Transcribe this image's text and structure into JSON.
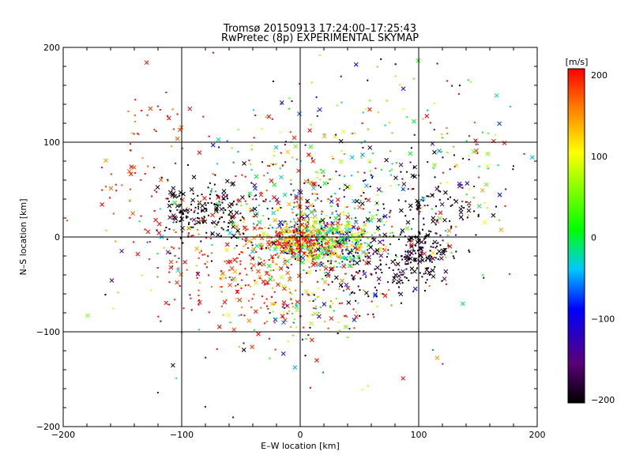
{
  "chart_data": {
    "type": "scatter",
    "title": "Tromsø 20150913 17:24:00–17:25:43",
    "subtitle": "RwPretec (8p) EXPERIMENTAL SKYMAP",
    "xlabel": "E–W location [km]",
    "ylabel": "N–S location [km]",
    "xlim": [
      -200,
      200
    ],
    "ylim": [
      -200,
      200
    ],
    "x_ticks": [
      "−200",
      "−100",
      "0",
      "100",
      "200"
    ],
    "y_ticks": [
      "−200",
      "−100",
      "0",
      "100",
      "200"
    ],
    "grid": true,
    "colorbar": {
      "label": "[m/s]",
      "range": [
        -200,
        200
      ],
      "ticks": [
        "200",
        "100",
        "0",
        "−100",
        "−200"
      ],
      "colormap": "black-purple-blue-cyan-green-yellow-red"
    },
    "markers": {
      "small": "dot",
      "large": "x"
    },
    "clusters": [
      {
        "cx": 20,
        "cy": -5,
        "sx": 22,
        "sy": 14,
        "n": 520,
        "v": 20,
        "vs": 110
      },
      {
        "cx": -5,
        "cy": -5,
        "sx": 15,
        "sy": 12,
        "n": 220,
        "v": 180,
        "vs": 40
      },
      {
        "cx": 10,
        "cy": 30,
        "sx": 45,
        "sy": 40,
        "n": 320,
        "v": 20,
        "vs": 150
      },
      {
        "cx": -70,
        "cy": 25,
        "sx": 22,
        "sy": 18,
        "n": 140,
        "v": -200,
        "vs": 20
      },
      {
        "cx": -100,
        "cy": 30,
        "sx": 12,
        "sy": 15,
        "n": 50,
        "v": -200,
        "vs": 20
      },
      {
        "cx": 100,
        "cy": -15,
        "sx": 12,
        "sy": 12,
        "n": 130,
        "v": -200,
        "vs": 20
      },
      {
        "cx": 70,
        "cy": -40,
        "sx": 25,
        "sy": 18,
        "n": 100,
        "v": -200,
        "vs": 30
      },
      {
        "cx": 110,
        "cy": 40,
        "sx": 30,
        "sy": 25,
        "n": 120,
        "v": -200,
        "vs": 40
      },
      {
        "cx": -60,
        "cy": -30,
        "sx": 30,
        "sy": 30,
        "n": 160,
        "v": 190,
        "vs": 30
      },
      {
        "cx": -130,
        "cy": 80,
        "sx": 25,
        "sy": 60,
        "n": 80,
        "v": 190,
        "vs": 30
      },
      {
        "cx": 50,
        "cy": 130,
        "sx": 50,
        "sy": 30,
        "n": 70,
        "v": 60,
        "vs": 140
      },
      {
        "cx": 0,
        "cy": -70,
        "sx": 30,
        "sy": 20,
        "n": 120,
        "v": 120,
        "vs": 100
      },
      {
        "cx": 140,
        "cy": 60,
        "sx": 25,
        "sy": 40,
        "n": 60,
        "v": 100,
        "vs": 120
      },
      {
        "cx": 0,
        "cy": 0,
        "sx": 90,
        "sy": 70,
        "n": 240,
        "v": 0,
        "vs": 190
      }
    ]
  }
}
